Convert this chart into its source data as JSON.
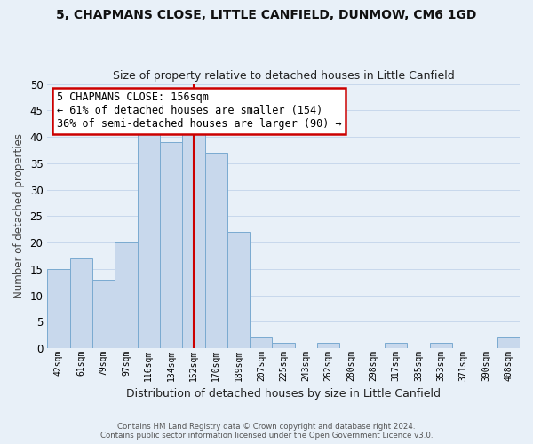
{
  "title": "5, CHAPMANS CLOSE, LITTLE CANFIELD, DUNMOW, CM6 1GD",
  "subtitle": "Size of property relative to detached houses in Little Canfield",
  "xlabel": "Distribution of detached houses by size in Little Canfield",
  "ylabel": "Number of detached properties",
  "bar_labels": [
    "42sqm",
    "61sqm",
    "79sqm",
    "97sqm",
    "116sqm",
    "134sqm",
    "152sqm",
    "170sqm",
    "189sqm",
    "207sqm",
    "225sqm",
    "243sqm",
    "262sqm",
    "280sqm",
    "298sqm",
    "317sqm",
    "335sqm",
    "353sqm",
    "371sqm",
    "390sqm",
    "408sqm"
  ],
  "bar_values": [
    15,
    17,
    13,
    20,
    41,
    39,
    42,
    37,
    22,
    2,
    1,
    0,
    1,
    0,
    0,
    1,
    0,
    1,
    0,
    0,
    2
  ],
  "bar_color": "#c8d8ec",
  "bar_edge_color": "#7aaad0",
  "vline_x": 6.0,
  "vline_color": "#cc0000",
  "annotation_text": "5 CHAPMANS CLOSE: 156sqm\n← 61% of detached houses are smaller (154)\n36% of semi-detached houses are larger (90) →",
  "annotation_box_edge": "#cc0000",
  "ylim": [
    0,
    50
  ],
  "yticks": [
    0,
    5,
    10,
    15,
    20,
    25,
    30,
    35,
    40,
    45,
    50
  ],
  "grid_color": "#c8d8ec",
  "bg_color": "#e8f0f8",
  "fig_bg_color": "#e8f0f8",
  "footer_line1": "Contains HM Land Registry data © Crown copyright and database right 2024.",
  "footer_line2": "Contains public sector information licensed under the Open Government Licence v3.0."
}
